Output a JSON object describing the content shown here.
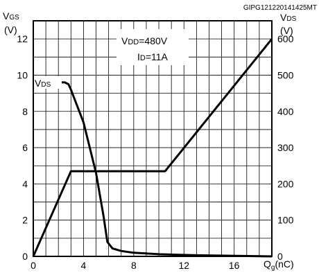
{
  "document_id": "GIPG121220141425MT",
  "chart_data": {
    "type": "line",
    "x": {
      "label_main": "Q",
      "label_sub": "g",
      "label_unit": "(nC)",
      "range": [
        0,
        19
      ],
      "ticks": [
        0,
        4,
        8,
        12,
        16
      ],
      "tick_labels": [
        "0",
        "4",
        "8",
        "12",
        "16"
      ]
    },
    "y_left": {
      "label_main": "V",
      "label_sub": "GS",
      "unit": "(V)",
      "range": [
        0,
        13
      ],
      "ticks": [
        0,
        2,
        4,
        6,
        8,
        10,
        12
      ],
      "tick_labels": [
        "0",
        "2",
        "4",
        "6",
        "8",
        "10",
        "12"
      ]
    },
    "y_right": {
      "label_main": "V",
      "label_sub": "DS",
      "unit": "(V)",
      "range": [
        0,
        650
      ],
      "ticks": [
        0,
        100,
        200,
        300,
        400,
        500,
        600
      ],
      "tick_labels": [
        "0",
        "100",
        "200",
        "300",
        "400",
        "500",
        "600"
      ]
    },
    "grid": true,
    "annotations": [
      {
        "text_main": "V",
        "text_sub": "DD",
        "text_rest": "=480V"
      },
      {
        "text_main": "I",
        "text_sub": "D",
        "text_rest": "=11A"
      }
    ],
    "series": [
      {
        "name_main": "V",
        "name_sub": "DS",
        "axis": "right",
        "x": [
          0,
          2.5,
          2.8,
          3.0,
          4.0,
          5.0,
          5.6,
          5.9,
          6.3,
          7.0,
          8.0,
          10.0,
          13.0,
          19.0
        ],
        "y": [
          480,
          480,
          475,
          460,
          370,
          230,
          110,
          40,
          22,
          15,
          10,
          6,
          3,
          0
        ]
      },
      {
        "name_main": "V",
        "name_sub": "GS",
        "axis": "left",
        "x": [
          0,
          3.0,
          10.5,
          19.0
        ],
        "y": [
          0,
          4.7,
          4.7,
          12.0
        ]
      }
    ]
  }
}
